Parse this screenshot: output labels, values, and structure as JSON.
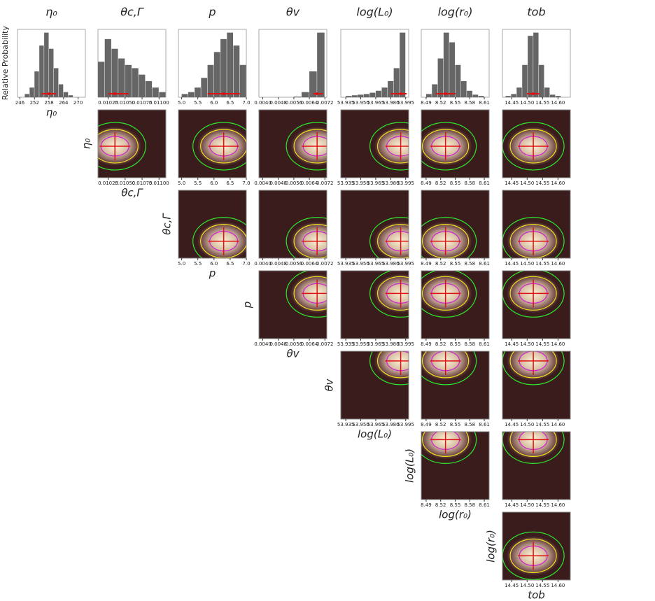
{
  "chart_data": {
    "type": "corner",
    "ylabel": "Relative Probability",
    "ylim": [
      0,
      1.05
    ],
    "parameters": [
      {
        "name": "η₀",
        "xlim": [
          245,
          273
        ],
        "xticks": [
          246,
          252,
          258,
          264,
          270
        ],
        "best": 258,
        "interval": [
          255,
          261
        ],
        "bins": [
          248,
          250,
          252,
          254,
          256,
          258,
          260,
          262,
          264,
          266,
          268
        ],
        "counts": [
          0.05,
          0.15,
          0.4,
          0.8,
          1.0,
          0.75,
          0.45,
          0.2,
          0.08,
          0.03
        ]
      },
      {
        "name": "θc,Γ",
        "xlim": [
          0.0101,
          0.0111
        ],
        "xticks": [
          {
            "value": 0.01025,
            "label": "0.01025"
          },
          {
            "value": 0.0105,
            "label": "0.01050"
          },
          {
            "value": 0.01075,
            "label": "0.01075"
          },
          {
            "value": 0.011,
            "label": "0.01100"
          }
        ],
        "best": 0.01035,
        "interval": [
          0.01025,
          0.01055
        ],
        "bins": [
          0.0101,
          0.0102,
          0.0103,
          0.0104,
          0.0105,
          0.0106,
          0.0107,
          0.0108,
          0.0109,
          0.011,
          0.0111
        ],
        "counts": [
          0.55,
          0.9,
          0.75,
          0.6,
          0.5,
          0.45,
          0.35,
          0.25,
          0.15,
          0.08
        ]
      },
      {
        "name": "p",
        "xlim": [
          4.9,
          7.0
        ],
        "xticks": [
          {
            "value": 5,
            "label": "5.0"
          },
          5.5,
          {
            "value": 6,
            "label": "6.0"
          },
          6.5,
          {
            "value": 7,
            "label": "7.0"
          }
        ],
        "best": 6.3,
        "interval": [
          5.8,
          6.8
        ],
        "bins": [
          5.0,
          5.2,
          5.4,
          5.6,
          5.8,
          6.0,
          6.2,
          6.4,
          6.6,
          6.8,
          7.0
        ],
        "counts": [
          0.05,
          0.08,
          0.15,
          0.3,
          0.5,
          0.7,
          0.9,
          1.0,
          0.8,
          0.5
        ]
      },
      {
        "name": "θv",
        "xlim": [
          0.0038,
          0.0073
        ],
        "xticks": [
          {
            "value": 0.004,
            "label": "0.0040"
          },
          0.0048,
          0.0056,
          0.0064,
          0.0072
        ],
        "best": 0.0068,
        "interval": [
          0.0066,
          0.0071
        ],
        "bins": [
          0.004,
          0.0044,
          0.0048,
          0.0052,
          0.0056,
          0.006,
          0.0064,
          0.0068,
          0.0072
        ],
        "counts": [
          0,
          0,
          0,
          0,
          0.01,
          0.08,
          0.4,
          1.0
        ]
      },
      {
        "name": "log(L₀)",
        "xlim": [
          53.93,
          53.998
        ],
        "xticks": [
          53.935,
          {
            "value": 53.95,
            "label": "53.950"
          },
          53.965,
          {
            "value": 53.98,
            "label": "53.980"
          },
          53.995
        ],
        "best": 53.99,
        "interval": [
          53.98,
          53.996
        ],
        "bins": [
          53.935,
          53.941,
          53.947,
          53.953,
          53.959,
          53.965,
          53.971,
          53.977,
          53.983,
          53.989,
          53.995
        ],
        "counts": [
          0.02,
          0.03,
          0.04,
          0.05,
          0.07,
          0.1,
          0.15,
          0.25,
          0.45,
          1.0
        ]
      },
      {
        "name": "log(r₀)",
        "xlim": [
          8.48,
          8.62
        ],
        "xticks": [
          8.49,
          8.52,
          8.55,
          8.58,
          8.61
        ],
        "best": 8.53,
        "interval": [
          8.51,
          8.55
        ],
        "bins": [
          8.49,
          8.502,
          8.514,
          8.526,
          8.538,
          8.55,
          8.562,
          8.574,
          8.586,
          8.598,
          8.61
        ],
        "counts": [
          0.05,
          0.2,
          0.6,
          1.0,
          0.85,
          0.5,
          0.25,
          0.1,
          0.04,
          0.02
        ]
      },
      {
        "name": "tob",
        "xlim": [
          14.42,
          14.64
        ],
        "xticks": [
          14.45,
          {
            "value": 14.5,
            "label": "14.50"
          },
          14.55,
          {
            "value": 14.6,
            "label": "14.60"
          }
        ],
        "best": 14.52,
        "interval": [
          14.5,
          14.54
        ],
        "bins": [
          14.43,
          14.448,
          14.466,
          14.484,
          14.502,
          14.52,
          14.538,
          14.556,
          14.574,
          14.592,
          14.61
        ],
        "counts": [
          0.02,
          0.05,
          0.15,
          0.5,
          0.95,
          1.0,
          0.5,
          0.15,
          0.04,
          0.02
        ]
      }
    ]
  }
}
